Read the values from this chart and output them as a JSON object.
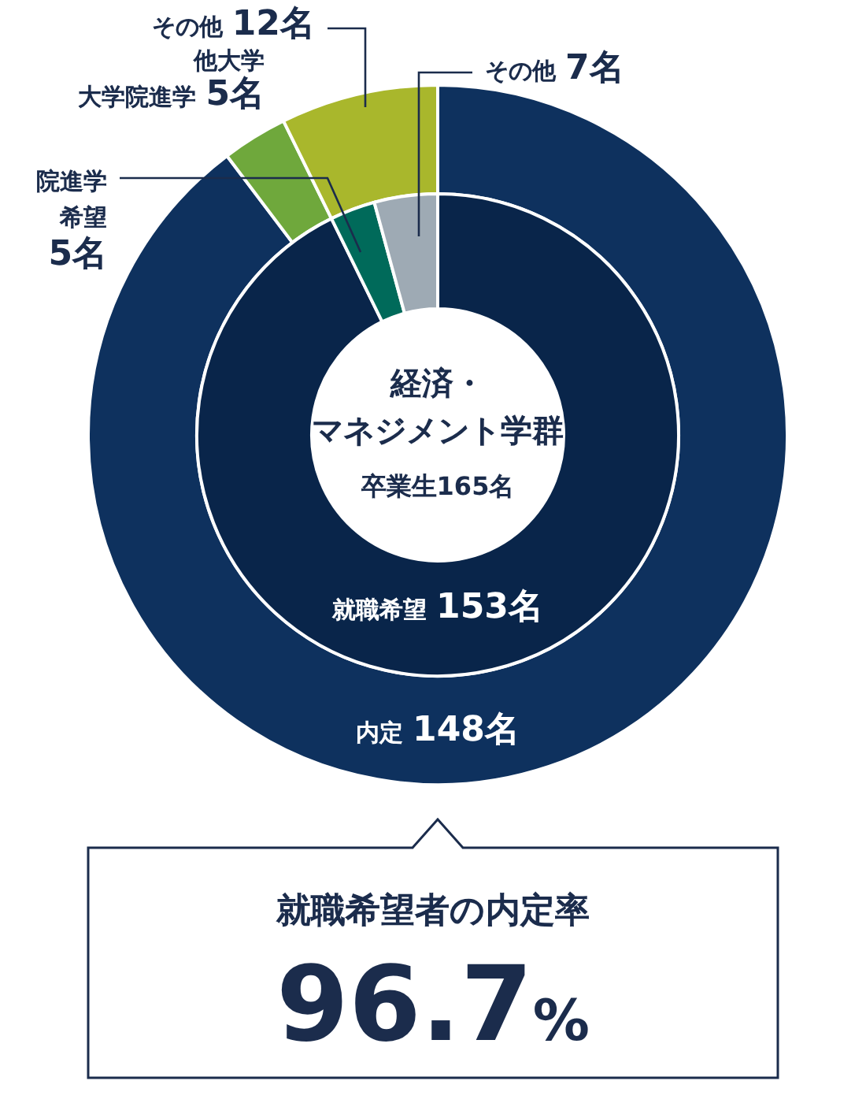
{
  "chart_data": [
    {
      "type": "donut",
      "categories": [
        "内定",
        "他大学大学院進学",
        "その他"
      ],
      "values": [
        148,
        5,
        12
      ],
      "value_labels": [
        "148名",
        "5名",
        "12名"
      ],
      "colors": [
        "#0e315e",
        "#6fa83c",
        "#a9b72c"
      ]
    },
    {
      "type": "donut",
      "title": "経済・マネジメント学群",
      "subtitle": "卒業生165名",
      "categories": [
        "就職希望",
        "院進学希望",
        "その他"
      ],
      "values": [
        153,
        5,
        7
      ],
      "value_labels": [
        "153名",
        "5名",
        "7名"
      ],
      "colors": [
        "#09254a",
        "#006a5a",
        "#9eaab4"
      ]
    },
    {
      "type": "other",
      "title": "就職希望者の内定率",
      "annotations": [
        "96.7%"
      ]
    }
  ]
}
